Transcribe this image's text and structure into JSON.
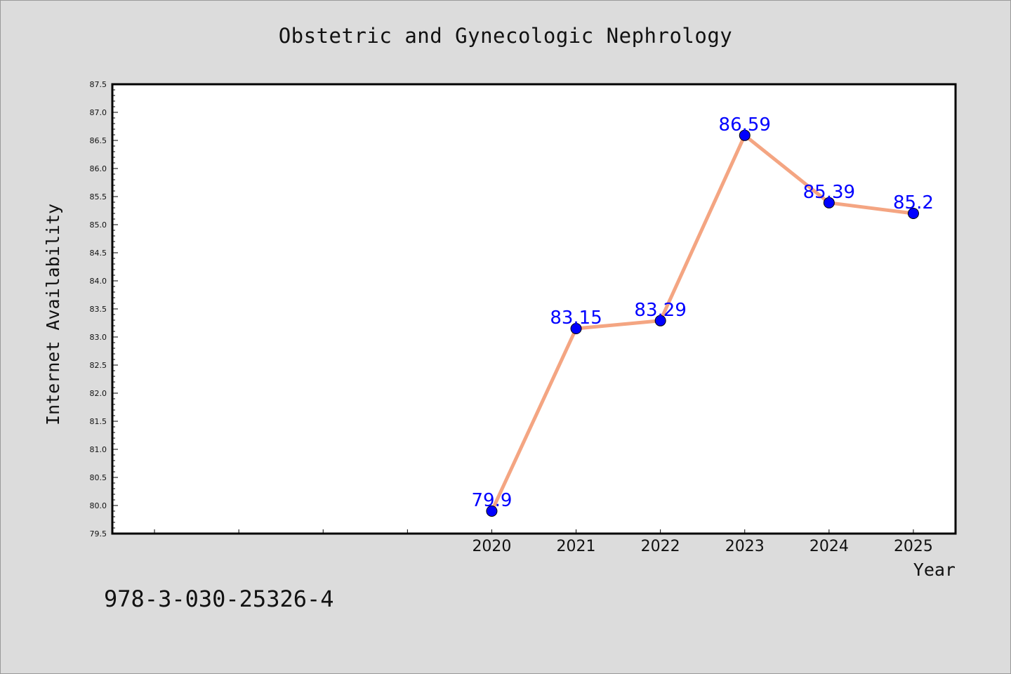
{
  "footnote": "978-3-030-25326-4",
  "colors": {
    "background": "#dcdcdc",
    "plot_background": "#ffffff",
    "line": "#f4a582",
    "marker": "#0000ff",
    "data_label": "#0000ff"
  },
  "chart_data": {
    "type": "line",
    "title": "Obstetric and Gynecologic Nephrology",
    "xlabel": "Year",
    "ylabel": "Internet Availability",
    "x": [
      2020,
      2021,
      2022,
      2023,
      2024,
      2025
    ],
    "x_tick_labels": [
      "2020",
      "2021",
      "2022",
      "2023",
      "2024",
      "2025"
    ],
    "xlim": [
      2015.5,
      2025.5
    ],
    "ylim": [
      79.5,
      87.5
    ],
    "y_ticks": [
      79.5,
      80.0,
      80.5,
      81.0,
      81.5,
      82.0,
      82.5,
      83.0,
      83.5,
      84.0,
      84.5,
      85.0,
      85.5,
      86.0,
      86.5,
      87.0,
      87.5
    ],
    "y_tick_labels": [
      "79.5",
      "80.0",
      "80.5",
      "81.0",
      "81.5",
      "82.0",
      "82.5",
      "83.0",
      "83.5",
      "84.0",
      "84.5",
      "85.0",
      "85.5",
      "86.0",
      "86.5",
      "87.0",
      "87.5"
    ],
    "series": [
      {
        "values": [
          79.9,
          83.15,
          83.29,
          86.59,
          85.39,
          85.2
        ],
        "data_labels": [
          "79.9",
          "83.15",
          "83.29",
          "86.59",
          "85.39",
          "85.2"
        ]
      }
    ],
    "grid": false,
    "legend": "none"
  }
}
